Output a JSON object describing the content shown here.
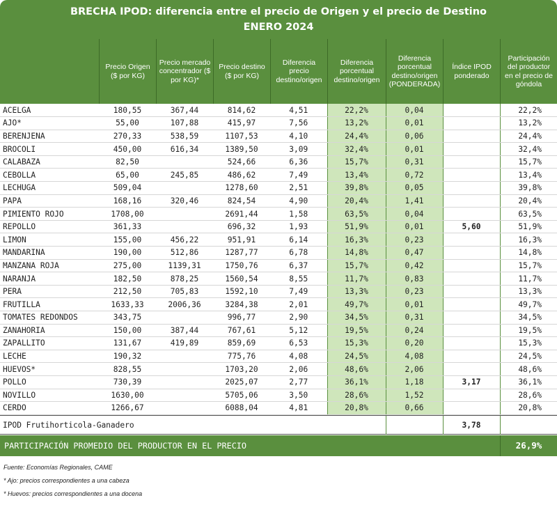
{
  "title": {
    "line1": "BRECHA IPOD: diferencia entre el precio de Origen y el precio de Destino",
    "line2": "ENERO 2024"
  },
  "headers": [
    "",
    "Precio Origen ($ por KG)",
    "Precio mercado concentrador ($ por KG)*",
    "Precio destino ($ por KG)",
    "Diferencia precio destino/origen",
    "Diferencia porcentual destino/origen",
    "Diferencia porcentual destino/origen (PONDERADA)",
    "Índice IPOD ponderado",
    "Participación del productor en el precio de góndola"
  ],
  "group1": {
    "index": "5,60",
    "rows": [
      [
        "ACELGA",
        "180,55",
        "367,44",
        "814,62",
        "4,51",
        "22,2%",
        "0,04",
        "22,2%"
      ],
      [
        "AJO*",
        "55,00",
        "107,88",
        "415,97",
        "7,56",
        "13,2%",
        "0,01",
        "13,2%"
      ],
      [
        "BERENJENA",
        "270,33",
        "538,59",
        "1107,53",
        "4,10",
        "24,4%",
        "0,06",
        "24,4%"
      ],
      [
        "BROCOLI",
        "450,00",
        "616,34",
        "1389,50",
        "3,09",
        "32,4%",
        "0,01",
        "32,4%"
      ],
      [
        "CALABAZA",
        "82,50",
        "",
        "524,66",
        "6,36",
        "15,7%",
        "0,31",
        "15,7%"
      ],
      [
        "CEBOLLA",
        "65,00",
        "245,85",
        "486,62",
        "7,49",
        "13,4%",
        "0,72",
        "13,4%"
      ],
      [
        "LECHUGA",
        "509,04",
        "",
        "1278,60",
        "2,51",
        "39,8%",
        "0,05",
        "39,8%"
      ],
      [
        "PAPA",
        "168,16",
        "320,46",
        "824,54",
        "4,90",
        "20,4%",
        "1,41",
        "20,4%"
      ],
      [
        "PIMIENTO ROJO",
        "1708,00",
        "",
        "2691,44",
        "1,58",
        "63,5%",
        "0,04",
        "63,5%"
      ],
      [
        "REPOLLO",
        "361,33",
        "",
        "696,32",
        "1,93",
        "51,9%",
        "0,01",
        "51,9%"
      ],
      [
        "LIMON",
        "155,00",
        "456,22",
        "951,91",
        "6,14",
        "16,3%",
        "0,23",
        "16,3%"
      ],
      [
        "MANDARINA",
        "190,00",
        "512,86",
        "1287,77",
        "6,78",
        "14,8%",
        "0,47",
        "14,8%"
      ],
      [
        "MANZANA ROJA",
        "275,00",
        "1139,31",
        "1750,76",
        "6,37",
        "15,7%",
        "0,42",
        "15,7%"
      ],
      [
        "NARANJA",
        "182,50",
        "878,25",
        "1560,54",
        "8,55",
        "11,7%",
        "0,83",
        "11,7%"
      ],
      [
        "PERA",
        "212,50",
        "705,83",
        "1592,10",
        "7,49",
        "13,3%",
        "0,23",
        "13,3%"
      ],
      [
        "FRUTILLA",
        "1633,33",
        "2006,36",
        "3284,38",
        "2,01",
        "49,7%",
        "0,01",
        "49,7%"
      ],
      [
        "TOMATES REDONDOS",
        "343,75",
        "",
        "996,77",
        "2,90",
        "34,5%",
        "0,31",
        "34,5%"
      ],
      [
        "ZANAHORIA",
        "150,00",
        "387,44",
        "767,61",
        "5,12",
        "19,5%",
        "0,24",
        "19,5%"
      ],
      [
        "ZAPALLITO",
        "131,67",
        "419,89",
        "859,69",
        "6,53",
        "15,3%",
        "0,20",
        "15,3%"
      ]
    ]
  },
  "group2": {
    "index": "3,17",
    "rows": [
      [
        "LECHE",
        "190,32",
        "",
        "775,76",
        "4,08",
        "24,5%",
        "4,08",
        "24,5%"
      ],
      [
        "HUEVOS*",
        "828,55",
        "",
        "1703,20",
        "2,06",
        "48,6%",
        "2,06",
        "48,6%"
      ],
      [
        "POLLO",
        "730,39",
        "",
        "2025,07",
        "2,77",
        "36,1%",
        "1,18",
        "36,1%"
      ],
      [
        "NOVILLO",
        "1630,00",
        "",
        "5705,06",
        "3,50",
        "28,6%",
        "1,52",
        "28,6%"
      ],
      [
        "CERDO",
        "1266,67",
        "",
        "6088,04",
        "4,81",
        "20,8%",
        "0,66",
        "20,8%"
      ]
    ]
  },
  "ipod_total": {
    "label": "IPOD Frutihorticola-Ganadero",
    "value": "3,78"
  },
  "average": {
    "label": "PARTICIPACIÓN PROMEDIO DEL PRODUCTOR EN EL PRECIO",
    "value": "26,9%"
  },
  "notes": [
    "Fuente: Economías Regionales, CAME",
    "* Ajo: precios correspondientes a una cabeza",
    "* Huevos: precios correspondientes a una docena"
  ],
  "colors": {
    "green": "#5a8f3e",
    "light_green": "#cfe6bb"
  }
}
